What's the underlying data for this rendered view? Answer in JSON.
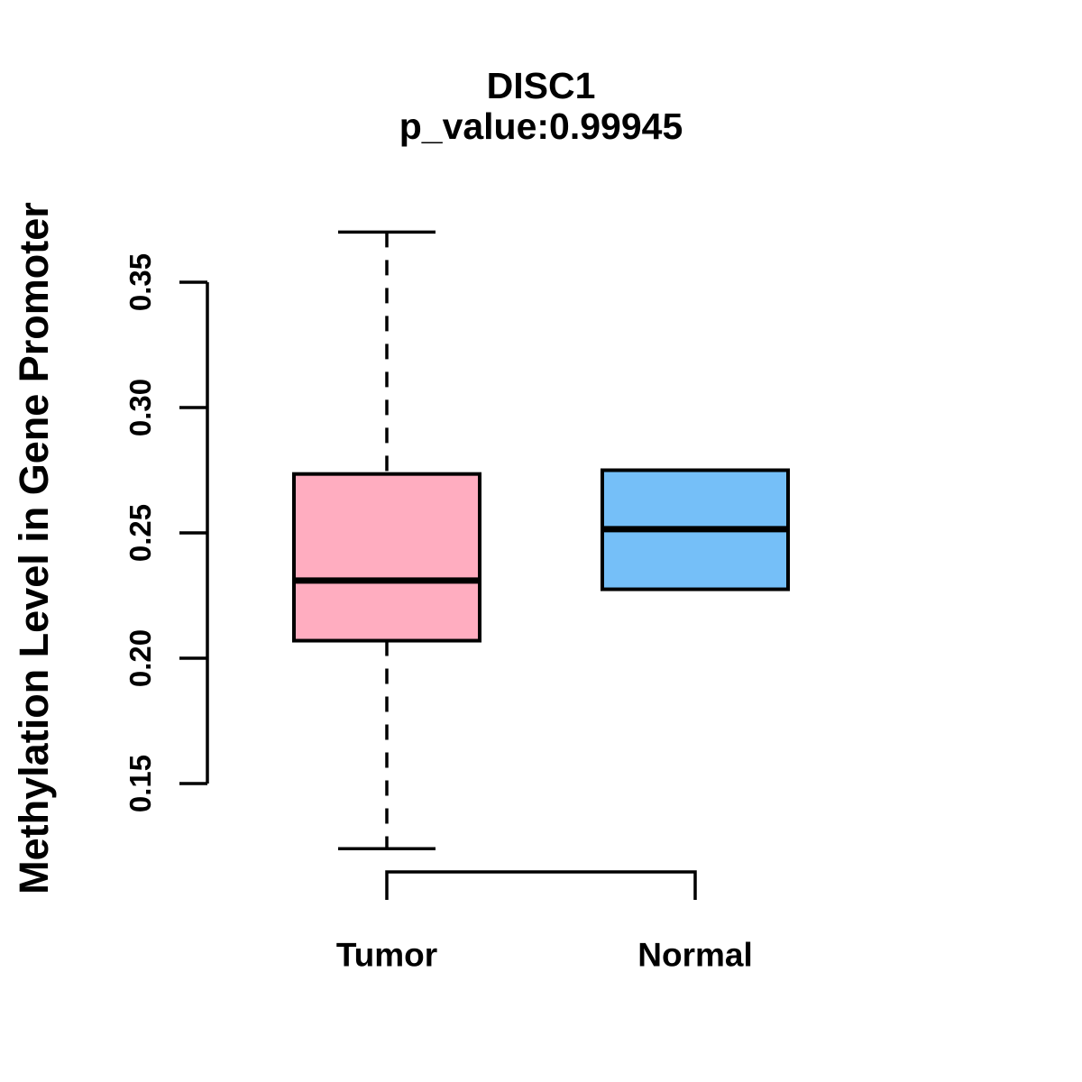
{
  "chart_data": {
    "type": "boxplot",
    "title": "DISC1",
    "subtitle": "p_value:0.99945",
    "xlabel": "",
    "ylabel": "Methylation Level in Gene Promoter",
    "categories": [
      "Tumor",
      "Normal"
    ],
    "series": [
      {
        "name": "Tumor",
        "color": "#FFADC0",
        "whisker_low": 0.124,
        "q1": 0.207,
        "median": 0.231,
        "q3": 0.2735,
        "whisker_high": 0.37
      },
      {
        "name": "Normal",
        "color": "#75BFF8",
        "whisker_low": 0.2275,
        "q1": 0.2275,
        "median": 0.2515,
        "q3": 0.275,
        "whisker_high": 0.275
      }
    ],
    "y_axis": {
      "min": 0.15,
      "max": 0.35,
      "ticks": [
        "0.15",
        "0.20",
        "0.25",
        "0.30",
        "0.35"
      ],
      "tick_values": [
        0.15,
        0.2,
        0.25,
        0.3,
        0.35
      ]
    },
    "grid": false,
    "legend": false,
    "layout_hint": "whiskers dashed, medians thick, bottom bracket axis between category centers"
  },
  "colors": {
    "background": "#FFFFFF",
    "stroke": "#000000",
    "tumor_fill": "#FFADC0",
    "normal_fill": "#75BFF8"
  }
}
